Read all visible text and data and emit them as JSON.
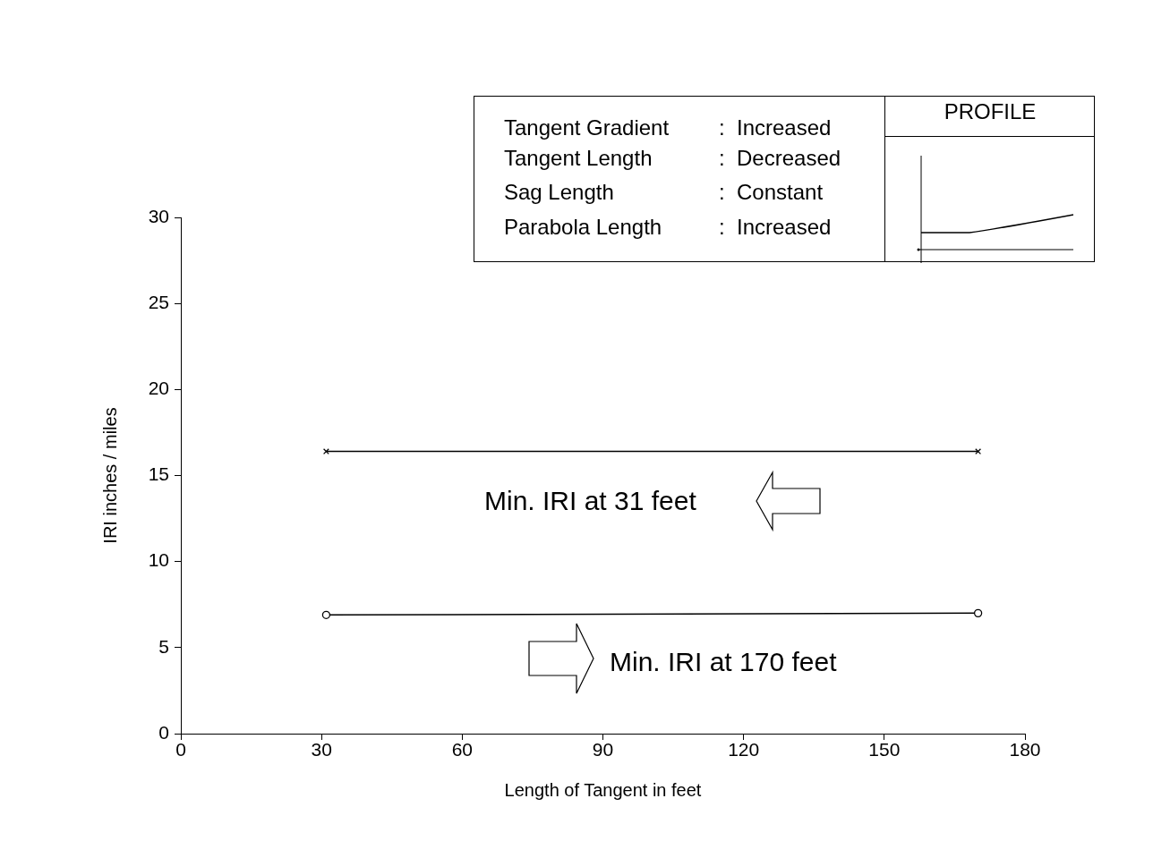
{
  "chart_data": {
    "type": "line",
    "xlabel": "Length of Tangent in feet",
    "ylabel": "IRI inches / miles",
    "x": [
      31,
      170
    ],
    "series": [
      {
        "color": "#000000",
        "values": [
          16.4,
          16.4
        ],
        "marker": "cross"
      },
      {
        "color": "#000000",
        "values": [
          6.9,
          7.0
        ],
        "marker": "circle"
      }
    ],
    "xlim": [
      0,
      180
    ],
    "xticks": [
      0,
      30,
      60,
      90,
      120,
      150,
      180
    ],
    "ylim": [
      0,
      30
    ],
    "yticks": [
      0,
      5,
      10,
      15,
      20,
      25,
      30
    ],
    "grid": false,
    "legend": false,
    "line_style": "solid",
    "annotations": [
      "Min. IRI at 31 feet",
      "Min. IRI at 170 feet",
      "Tangent Gradient : Increased",
      "Tangent Length : Decreased",
      "Sag Length : Constant",
      "Parabola Length : Increased",
      "PROFILE"
    ]
  }
}
